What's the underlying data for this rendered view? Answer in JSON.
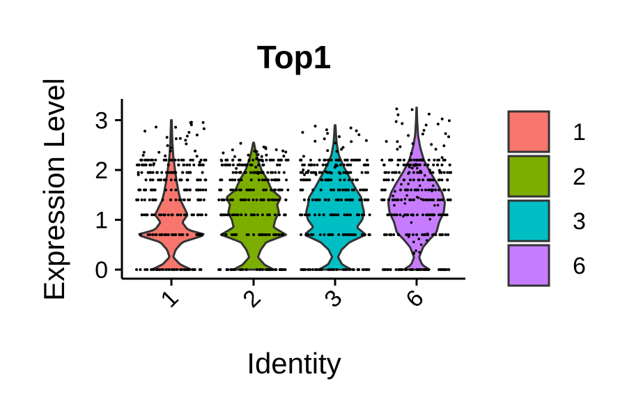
{
  "chart_data": {
    "type": "violin",
    "title": "Top1",
    "xlabel": "Identity",
    "ylabel": "Expression Level",
    "categories": [
      "1",
      "2",
      "3",
      "6"
    ],
    "colors": [
      "#F8766D",
      "#7CAE00",
      "#00BFC4",
      "#C77CFF"
    ],
    "ylim": [
      -0.2,
      3.4
    ],
    "yticks": [
      0,
      1,
      2,
      3
    ],
    "tick_labels": {
      "y": [
        "0",
        "1",
        "2",
        "3"
      ]
    },
    "legend": {
      "position": "right",
      "labels": [
        "1",
        "2",
        "3",
        "6"
      ]
    },
    "series": [
      {
        "name": "1",
        "violin_max": 3.0,
        "density": [
          [
            0,
            0.55
          ],
          [
            0.1,
            0.25
          ],
          [
            0.25,
            0.05
          ],
          [
            0.4,
            0.12
          ],
          [
            0.55,
            0.3
          ],
          [
            0.7,
            0.95
          ],
          [
            0.8,
            0.45
          ],
          [
            0.95,
            0.3
          ],
          [
            1.1,
            0.45
          ],
          [
            1.25,
            0.35
          ],
          [
            1.4,
            0.25
          ],
          [
            1.55,
            0.2
          ],
          [
            1.75,
            0.15
          ],
          [
            2.0,
            0.1
          ],
          [
            2.3,
            0.05
          ],
          [
            2.6,
            0.025
          ],
          [
            3.0,
            0.01
          ]
        ]
      },
      {
        "name": "2",
        "violin_max": 2.55,
        "density": [
          [
            0,
            0.55
          ],
          [
            0.1,
            0.3
          ],
          [
            0.25,
            0.12
          ],
          [
            0.4,
            0.2
          ],
          [
            0.55,
            0.35
          ],
          [
            0.7,
            0.9
          ],
          [
            0.85,
            0.55
          ],
          [
            1.0,
            0.6
          ],
          [
            1.15,
            0.7
          ],
          [
            1.3,
            0.65
          ],
          [
            1.45,
            0.75
          ],
          [
            1.6,
            0.5
          ],
          [
            1.8,
            0.38
          ],
          [
            2.0,
            0.22
          ],
          [
            2.2,
            0.12
          ],
          [
            2.4,
            0.05
          ],
          [
            2.55,
            0.01
          ]
        ]
      },
      {
        "name": "3",
        "violin_max": 2.9,
        "density": [
          [
            0,
            0.45
          ],
          [
            0.1,
            0.2
          ],
          [
            0.25,
            0.08
          ],
          [
            0.4,
            0.18
          ],
          [
            0.55,
            0.4
          ],
          [
            0.7,
            0.85
          ],
          [
            0.85,
            0.6
          ],
          [
            1.0,
            0.75
          ],
          [
            1.15,
            0.8
          ],
          [
            1.3,
            0.75
          ],
          [
            1.45,
            0.72
          ],
          [
            1.65,
            0.55
          ],
          [
            1.85,
            0.4
          ],
          [
            2.05,
            0.25
          ],
          [
            2.3,
            0.1
          ],
          [
            2.55,
            0.04
          ],
          [
            2.9,
            0.01
          ]
        ]
      },
      {
        "name": "6",
        "violin_max": 3.25,
        "density": [
          [
            0,
            0.35
          ],
          [
            0.1,
            0.15
          ],
          [
            0.25,
            0.07
          ],
          [
            0.45,
            0.18
          ],
          [
            0.6,
            0.35
          ],
          [
            0.75,
            0.55
          ],
          [
            0.95,
            0.62
          ],
          [
            1.15,
            0.75
          ],
          [
            1.35,
            0.78
          ],
          [
            1.55,
            0.7
          ],
          [
            1.75,
            0.55
          ],
          [
            1.95,
            0.38
          ],
          [
            2.2,
            0.2
          ],
          [
            2.45,
            0.1
          ],
          [
            2.7,
            0.04
          ],
          [
            3.0,
            0.015
          ],
          [
            3.25,
            0.005
          ]
        ]
      }
    ],
    "points": {
      "description_levels": [
        0,
        0.7,
        1.1,
        1.4,
        1.6,
        1.8,
        1.95,
        2.1,
        2.2
      ],
      "jitter_seed": 7
    }
  }
}
